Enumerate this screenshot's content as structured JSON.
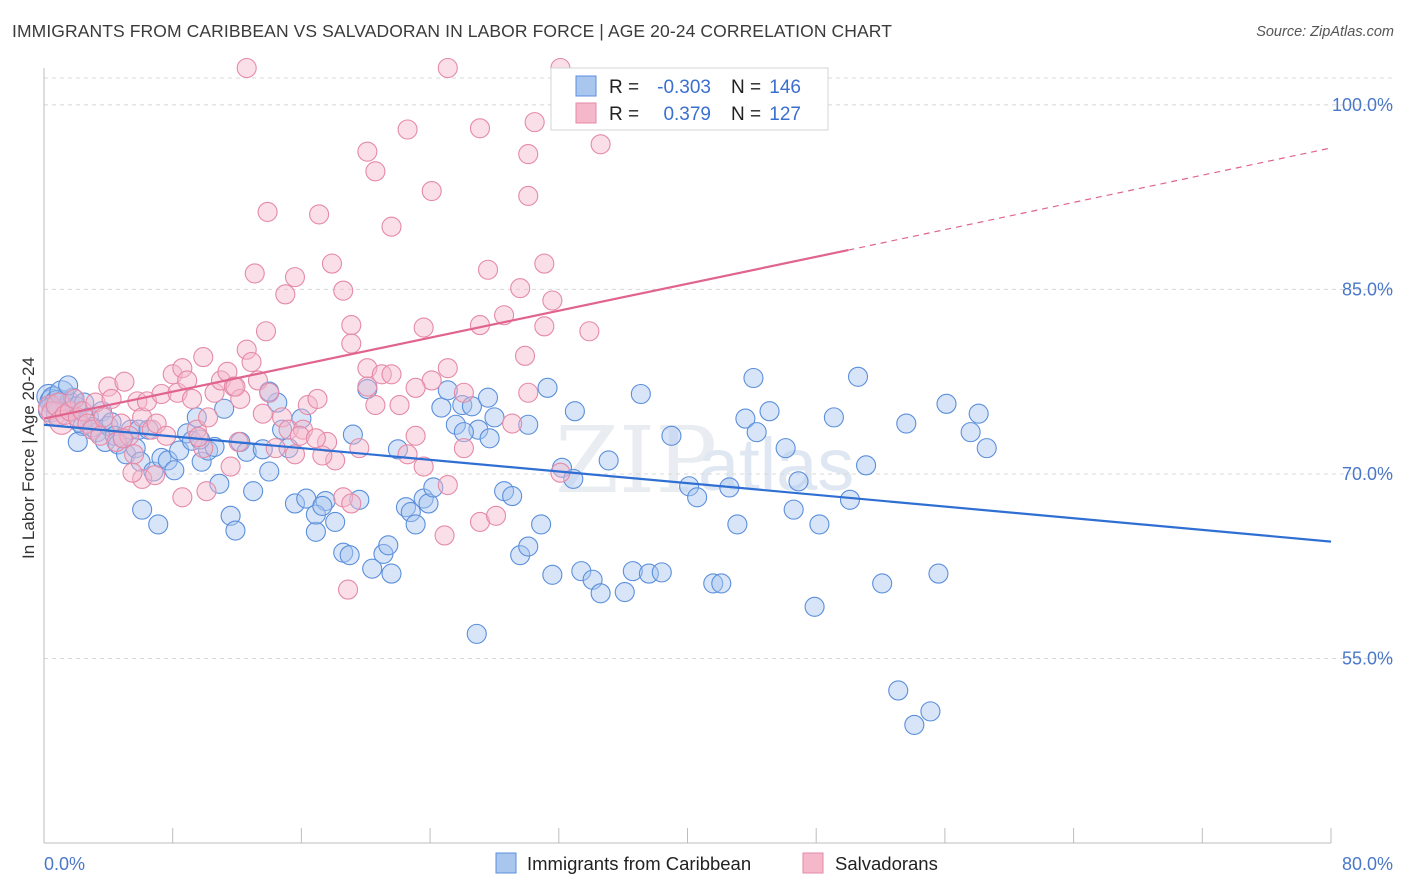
{
  "title": "IMMIGRANTS FROM CARIBBEAN VS SALVADORAN IN LABOR FORCE | AGE 20-24 CORRELATION CHART",
  "source": "Source: ZipAtlas.com",
  "watermark": {
    "zip": "ZIP",
    "atlas": "atlas"
  },
  "legend": {
    "r_label": "R =",
    "n_label": "N =",
    "rows": [
      {
        "r": "-0.303",
        "n": "146"
      },
      {
        "r": "0.379",
        "n": "127"
      }
    ]
  },
  "bottom_legend": [
    "Immigrants from Caribbean",
    "Salvadorans"
  ],
  "chart_data": {
    "type": "scatter",
    "title": "IMMIGRANTS FROM CARIBBEAN VS SALVADORAN IN LABOR FORCE | AGE 20-24 CORRELATION CHART",
    "xlabel": "",
    "ylabel": "In Labor Force | Age 20-24",
    "xlim": [
      0,
      80
    ],
    "ylim": [
      40,
      103
    ],
    "x_tick_labels": [
      "0.0%",
      "80.0%"
    ],
    "y_ticks": [
      55,
      70,
      85,
      100
    ],
    "y_tick_labels": [
      "55.0%",
      "70.0%",
      "85.0%",
      "100.0%"
    ],
    "grid": true,
    "colors": {
      "caribbean_fill": "#a9c6ef",
      "caribbean_stroke": "#5b8fdc",
      "caribbean_line": "#2f6fd3",
      "salvadoran_fill": "#f5b8cb",
      "salvadoran_stroke": "#e58aa7",
      "salvadoran_line": "#e0648e",
      "tick": "#4a78c8",
      "grid": "#d8d8d8"
    },
    "series": [
      {
        "name": "Immigrants from Caribbean",
        "r": -0.303,
        "n": 146,
        "trend": {
          "x": [
            0,
            80
          ],
          "y": [
            74.0,
            64.5
          ]
        },
        "points": [
          [
            0.3,
            76.3
          ],
          [
            0.5,
            75.9
          ],
          [
            0.6,
            76.1
          ],
          [
            0.8,
            75.8
          ],
          [
            1.0,
            75.6
          ],
          [
            1.2,
            76.0
          ],
          [
            1.4,
            75.4
          ],
          [
            1.6,
            75.9
          ],
          [
            1.8,
            76.2
          ],
          [
            2.0,
            75.5
          ],
          [
            0.4,
            75.2
          ],
          [
            0.9,
            74.9
          ],
          [
            1.1,
            76.6
          ],
          [
            1.5,
            77.2
          ],
          [
            2.2,
            74.2
          ],
          [
            2.5,
            75.8
          ],
          [
            2.8,
            74.6
          ],
          [
            3.0,
            73.8
          ],
          [
            3.3,
            73.4
          ],
          [
            3.6,
            75.1
          ],
          [
            3.8,
            72.6
          ],
          [
            4.0,
            73.9
          ],
          [
            4.2,
            74.2
          ],
          [
            4.4,
            73.1
          ],
          [
            4.6,
            72.4
          ],
          [
            4.9,
            72.9
          ],
          [
            5.1,
            71.6
          ],
          [
            5.4,
            73.6
          ],
          [
            5.7,
            72.1
          ],
          [
            6.0,
            71.0
          ],
          [
            2.4,
            73.9
          ],
          [
            2.1,
            72.6
          ],
          [
            5.9,
            73.6
          ],
          [
            6.5,
            73.6
          ],
          [
            6.8,
            70.2
          ],
          [
            6.1,
            67.1
          ],
          [
            7.1,
            65.9
          ],
          [
            7.3,
            71.3
          ],
          [
            7.7,
            71.1
          ],
          [
            8.1,
            70.3
          ],
          [
            8.4,
            71.9
          ],
          [
            8.9,
            73.3
          ],
          [
            9.2,
            72.7
          ],
          [
            9.5,
            74.6
          ],
          [
            9.8,
            71.0
          ],
          [
            10.2,
            71.9
          ],
          [
            10.6,
            72.2
          ],
          [
            10.9,
            69.2
          ],
          [
            11.2,
            75.3
          ],
          [
            11.6,
            66.6
          ],
          [
            11.9,
            65.4
          ],
          [
            12.2,
            72.6
          ],
          [
            12.6,
            71.8
          ],
          [
            13.0,
            68.6
          ],
          [
            13.6,
            72.0
          ],
          [
            14.0,
            70.2
          ],
          [
            14.5,
            75.8
          ],
          [
            14.8,
            73.6
          ],
          [
            15.2,
            72.1
          ],
          [
            15.6,
            67.6
          ],
          [
            16.0,
            74.5
          ],
          [
            16.3,
            68.0
          ],
          [
            16.9,
            65.3
          ],
          [
            17.5,
            67.8
          ],
          [
            18.1,
            66.1
          ],
          [
            18.6,
            63.6
          ],
          [
            19.0,
            63.4
          ],
          [
            19.2,
            73.2
          ],
          [
            19.6,
            67.9
          ],
          [
            20.1,
            76.9
          ],
          [
            20.4,
            62.3
          ],
          [
            21.1,
            63.5
          ],
          [
            21.6,
            61.9
          ],
          [
            22.0,
            72.0
          ],
          [
            22.5,
            67.3
          ],
          [
            22.8,
            66.9
          ],
          [
            23.1,
            65.9
          ],
          [
            23.6,
            68.0
          ],
          [
            23.9,
            67.6
          ],
          [
            24.2,
            68.9
          ],
          [
            24.7,
            75.4
          ],
          [
            25.1,
            76.8
          ],
          [
            25.6,
            74.0
          ],
          [
            26.0,
            75.6
          ],
          [
            26.6,
            75.5
          ],
          [
            26.9,
            57.0
          ],
          [
            27.0,
            73.6
          ],
          [
            27.6,
            76.2
          ],
          [
            28.0,
            74.6
          ],
          [
            28.6,
            68.6
          ],
          [
            29.1,
            68.2
          ],
          [
            29.6,
            63.4
          ],
          [
            30.1,
            64.1
          ],
          [
            30.9,
            65.9
          ],
          [
            31.6,
            61.8
          ],
          [
            32.2,
            70.5
          ],
          [
            32.9,
            69.6
          ],
          [
            33.4,
            62.1
          ],
          [
            34.1,
            61.4
          ],
          [
            34.6,
            60.3
          ],
          [
            35.1,
            71.1
          ],
          [
            36.1,
            60.4
          ],
          [
            36.6,
            62.1
          ],
          [
            37.6,
            61.9
          ],
          [
            38.4,
            62.0
          ],
          [
            39.0,
            73.1
          ],
          [
            40.1,
            69.0
          ],
          [
            40.6,
            68.1
          ],
          [
            41.6,
            61.1
          ],
          [
            42.1,
            61.1
          ],
          [
            42.6,
            68.9
          ],
          [
            43.1,
            65.9
          ],
          [
            43.6,
            74.5
          ],
          [
            44.1,
            77.8
          ],
          [
            45.1,
            75.1
          ],
          [
            46.1,
            72.1
          ],
          [
            46.9,
            69.4
          ],
          [
            47.9,
            59.2
          ],
          [
            48.2,
            65.9
          ],
          [
            49.1,
            74.6
          ],
          [
            50.1,
            67.9
          ],
          [
            50.6,
            77.9
          ],
          [
            51.1,
            70.7
          ],
          [
            52.1,
            61.1
          ],
          [
            53.1,
            52.4
          ],
          [
            54.1,
            49.6
          ],
          [
            55.1,
            50.7
          ],
          [
            55.6,
            61.9
          ],
          [
            56.1,
            75.7
          ],
          [
            57.6,
            73.4
          ],
          [
            58.1,
            74.9
          ],
          [
            58.6,
            72.1
          ],
          [
            44.3,
            73.4
          ],
          [
            37.1,
            76.5
          ],
          [
            31.3,
            77.0
          ],
          [
            30.1,
            74.0
          ],
          [
            33.0,
            75.1
          ],
          [
            27.7,
            72.9
          ],
          [
            9.7,
            72.8
          ],
          [
            14.0,
            76.7
          ],
          [
            16.9,
            66.7
          ],
          [
            26.1,
            73.4
          ],
          [
            46.6,
            67.1
          ],
          [
            53.6,
            74.1
          ],
          [
            17.3,
            67.4
          ],
          [
            21.4,
            64.2
          ]
        ]
      },
      {
        "name": "Salvadorans",
        "r": 0.379,
        "n": 127,
        "trend": {
          "x": [
            0,
            50
          ],
          "y": [
            74.5,
            88.2
          ],
          "dashed_to": [
            80,
            96.5
          ]
        },
        "points": [
          [
            0.4,
            75.4
          ],
          [
            0.6,
            74.9
          ],
          [
            0.9,
            75.6
          ],
          [
            1.1,
            74.2
          ],
          [
            1.3,
            74.8
          ],
          [
            1.6,
            75.1
          ],
          [
            1.9,
            76.1
          ],
          [
            2.1,
            74.6
          ],
          [
            2.4,
            75.1
          ],
          [
            2.7,
            74.1
          ],
          [
            3.0,
            73.6
          ],
          [
            3.2,
            75.8
          ],
          [
            3.5,
            73.1
          ],
          [
            3.7,
            74.6
          ],
          [
            4.0,
            77.1
          ],
          [
            4.2,
            76.1
          ],
          [
            4.5,
            72.6
          ],
          [
            4.8,
            74.1
          ],
          [
            5.0,
            77.5
          ],
          [
            5.3,
            73.1
          ],
          [
            5.6,
            71.6
          ],
          [
            5.8,
            75.9
          ],
          [
            6.1,
            74.6
          ],
          [
            6.4,
            75.9
          ],
          [
            6.7,
            73.6
          ],
          [
            7.0,
            74.1
          ],
          [
            7.3,
            76.5
          ],
          [
            7.6,
            73.1
          ],
          [
            8.0,
            78.1
          ],
          [
            8.3,
            76.6
          ],
          [
            8.6,
            78.6
          ],
          [
            8.9,
            77.6
          ],
          [
            9.2,
            76.1
          ],
          [
            9.5,
            73.6
          ],
          [
            9.9,
            72.1
          ],
          [
            10.2,
            74.6
          ],
          [
            10.6,
            76.6
          ],
          [
            11.0,
            77.6
          ],
          [
            11.4,
            78.3
          ],
          [
            11.8,
            77.1
          ],
          [
            12.2,
            76.1
          ],
          [
            12.6,
            80.1
          ],
          [
            12.9,
            79.1
          ],
          [
            13.3,
            77.6
          ],
          [
            13.6,
            74.9
          ],
          [
            14.0,
            76.6
          ],
          [
            14.4,
            72.1
          ],
          [
            14.8,
            74.6
          ],
          [
            15.2,
            73.6
          ],
          [
            15.6,
            71.6
          ],
          [
            15.0,
            84.6
          ],
          [
            13.8,
            81.6
          ],
          [
            16.1,
            73.6
          ],
          [
            16.4,
            75.6
          ],
          [
            17.0,
            76.1
          ],
          [
            17.6,
            72.6
          ],
          [
            18.1,
            71.1
          ],
          [
            18.6,
            68.1
          ],
          [
            19.1,
            67.6
          ],
          [
            19.6,
            72.1
          ],
          [
            20.1,
            78.6
          ],
          [
            20.6,
            75.6
          ],
          [
            21.0,
            78.1
          ],
          [
            21.6,
            78.1
          ],
          [
            22.1,
            75.6
          ],
          [
            22.6,
            71.6
          ],
          [
            23.1,
            73.1
          ],
          [
            23.6,
            70.6
          ],
          [
            24.1,
            77.6
          ],
          [
            25.1,
            69.1
          ],
          [
            26.1,
            72.1
          ],
          [
            27.1,
            66.1
          ],
          [
            28.1,
            66.6
          ],
          [
            29.1,
            74.1
          ],
          [
            30.1,
            76.6
          ],
          [
            32.1,
            70.1
          ],
          [
            11.6,
            70.6
          ],
          [
            8.6,
            68.1
          ],
          [
            9.9,
            79.5
          ],
          [
            13.1,
            86.3
          ],
          [
            13.9,
            91.3
          ],
          [
            15.6,
            86.0
          ],
          [
            17.1,
            91.1
          ],
          [
            17.9,
            87.1
          ],
          [
            18.6,
            84.9
          ],
          [
            19.1,
            82.1
          ],
          [
            20.1,
            96.2
          ],
          [
            20.6,
            94.6
          ],
          [
            21.6,
            90.1
          ],
          [
            22.6,
            98.0
          ],
          [
            23.6,
            81.9
          ],
          [
            24.1,
            93.0
          ],
          [
            25.1,
            78.6
          ],
          [
            27.1,
            82.1
          ],
          [
            27.6,
            86.6
          ],
          [
            28.6,
            82.9
          ],
          [
            29.6,
            85.1
          ],
          [
            30.1,
            92.6
          ],
          [
            31.1,
            87.1
          ],
          [
            31.6,
            84.1
          ],
          [
            12.6,
            103.0
          ],
          [
            25.1,
            103.0
          ],
          [
            27.1,
            98.1
          ],
          [
            30.1,
            96.0
          ],
          [
            30.5,
            98.6
          ],
          [
            34.6,
            96.8
          ],
          [
            32.1,
            103.0
          ],
          [
            6.1,
            69.6
          ],
          [
            10.1,
            68.6
          ],
          [
            11.9,
            77.1
          ],
          [
            20.1,
            77.1
          ],
          [
            23.1,
            77.0
          ],
          [
            26.1,
            76.6
          ],
          [
            24.9,
            65.0
          ],
          [
            18.9,
            60.6
          ],
          [
            15.9,
            73.1
          ],
          [
            19.1,
            80.6
          ],
          [
            29.9,
            79.6
          ],
          [
            31.1,
            82.0
          ],
          [
            33.9,
            81.6
          ],
          [
            4.9,
            72.9
          ],
          [
            6.9,
            69.9
          ],
          [
            5.5,
            70.1
          ],
          [
            9.6,
            73.0
          ],
          [
            12.1,
            72.6
          ],
          [
            16.9,
            72.9
          ],
          [
            17.3,
            71.5
          ]
        ]
      }
    ]
  }
}
